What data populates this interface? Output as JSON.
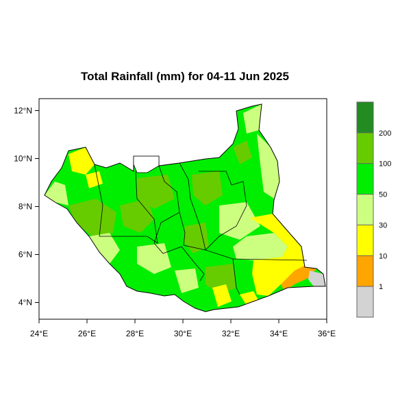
{
  "title": "Total Rainfall (mm) for 04-11 Jun 2025",
  "x_ticks": [
    {
      "lon": 24,
      "label": "24°E"
    },
    {
      "lon": 26,
      "label": "26°E"
    },
    {
      "lon": 28,
      "label": "28°E"
    },
    {
      "lon": 30,
      "label": "30°E"
    },
    {
      "lon": 32,
      "label": "32°E"
    },
    {
      "lon": 34,
      "label": "34°E"
    },
    {
      "lon": 36,
      "label": "36°E"
    }
  ],
  "y_ticks": [
    {
      "lat": 4,
      "label": "4°N"
    },
    {
      "lat": 6,
      "label": "6°N"
    },
    {
      "lat": 8,
      "label": "8°N"
    },
    {
      "lat": 10,
      "label": "10°N"
    },
    {
      "lat": 12,
      "label": "12°N"
    }
  ],
  "extent": {
    "lon": [
      24,
      36
    ],
    "lat": [
      3.3,
      12.5
    ]
  },
  "legend": {
    "classes": [
      {
        "range": "< 1",
        "color": "#d3d3d3"
      },
      {
        "range": "1-10",
        "color": "#ffa500"
      },
      {
        "range": "10-30",
        "color": "#ffff00"
      },
      {
        "range": "30-50",
        "color": "#ccff80"
      },
      {
        "range": "50-100",
        "color": "#00ee00"
      },
      {
        "range": "100-200",
        "color": "#66cc00"
      },
      {
        "range": "> 200",
        "color": "#228b22"
      }
    ],
    "boundary_labels": [
      "1",
      "10",
      "30",
      "50",
      "100",
      "200"
    ]
  },
  "colors": {
    "border": "#000000",
    "outside_region": "#ffffff"
  }
}
